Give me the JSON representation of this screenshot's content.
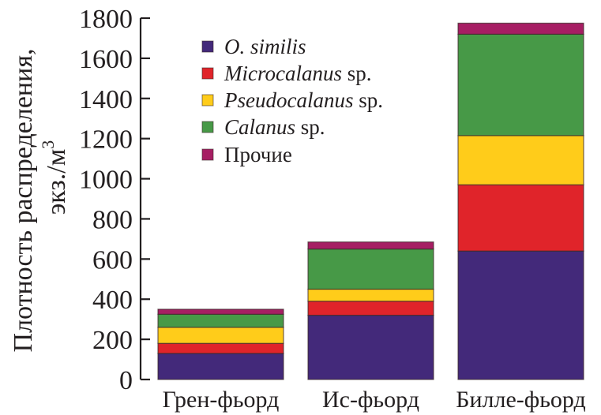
{
  "chart_data": {
    "type": "bar",
    "stacked": true,
    "title": "",
    "xlabel": "",
    "ylabel_lines": [
      "Плотность распределения,",
      "экз./м"
    ],
    "ylabel_superscript": "3",
    "ylim": [
      0,
      1800
    ],
    "yticks": [
      0,
      200,
      400,
      600,
      800,
      1000,
      1200,
      1400,
      1600,
      1800
    ],
    "ytick_labels": [
      "0",
      "200",
      "400",
      "600",
      "800",
      "1000",
      "1200",
      "1400",
      "1600",
      "1800"
    ],
    "grid": false,
    "legend_position": "top-left",
    "categories": [
      "Грен-фьорд",
      "Ис-фьорд",
      "Билле-фьорд"
    ],
    "series": [
      {
        "name": "O. similis",
        "name_italic": "O. similis",
        "name_suffix": "",
        "color": "#43297a",
        "values": [
          130,
          320,
          640
        ]
      },
      {
        "name": "Microcalanus sp.",
        "name_italic": "Microcalanus",
        "name_suffix": " sp.",
        "color": "#e0242a",
        "values": [
          50,
          70,
          330
        ]
      },
      {
        "name": "Pseudocalanus sp.",
        "name_italic": "Pseudocalanus",
        "name_suffix": " sp.",
        "color": "#ffcc1a",
        "values": [
          80,
          60,
          245
        ]
      },
      {
        "name": "Calanus sp.",
        "name_italic": "Calanus",
        "name_suffix": " sp.",
        "color": "#479947",
        "values": [
          65,
          200,
          505
        ]
      },
      {
        "name": "Прочие",
        "name_italic": "",
        "name_suffix": "Прочие",
        "color": "#a61e63",
        "values": [
          25,
          35,
          55
        ]
      }
    ]
  }
}
